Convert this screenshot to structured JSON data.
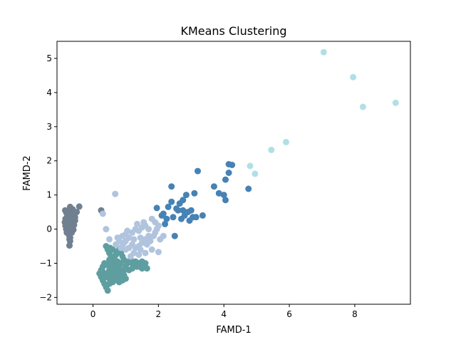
{
  "chart_data": {
    "type": "scatter",
    "title": "KMeans Clustering",
    "xlabel": "FAMD-1",
    "ylabel": "FAMD-2",
    "xlim": [
      -1.1,
      9.7
    ],
    "ylim": [
      -2.2,
      5.5
    ],
    "xticks": [
      0,
      2,
      4,
      6,
      8
    ],
    "yticks": [
      -2,
      -1,
      0,
      1,
      2,
      3,
      4,
      5
    ],
    "grid": false,
    "legend": "none",
    "series": [
      {
        "color": "#708090",
        "points": [
          [
            -0.85,
            0.55
          ],
          [
            -0.82,
            0.5
          ],
          [
            -0.8,
            0.45
          ],
          [
            -0.78,
            0.38
          ],
          [
            -0.84,
            0.3
          ],
          [
            -0.8,
            0.25
          ],
          [
            -0.86,
            0.2
          ],
          [
            -0.8,
            0.15
          ],
          [
            -0.84,
            0.1
          ],
          [
            -0.78,
            0.05
          ],
          [
            -0.82,
            0.0
          ],
          [
            -0.76,
            -0.05
          ],
          [
            -0.8,
            -0.1
          ],
          [
            -0.74,
            -0.15
          ],
          [
            -0.72,
            -0.2
          ],
          [
            -0.7,
            -0.25
          ],
          [
            -0.72,
            -0.3
          ],
          [
            -0.7,
            -0.35
          ],
          [
            -0.68,
            0.6
          ],
          [
            -0.62,
            0.58
          ],
          [
            -0.6,
            0.52
          ],
          [
            -0.55,
            0.48
          ],
          [
            -0.5,
            0.5
          ],
          [
            -0.6,
            0.4
          ],
          [
            -0.55,
            0.35
          ],
          [
            -0.6,
            0.3
          ],
          [
            -0.55,
            0.25
          ],
          [
            -0.6,
            0.2
          ],
          [
            -0.58,
            0.12
          ],
          [
            -0.62,
            0.05
          ],
          [
            -0.6,
            -0.02
          ],
          [
            -0.65,
            -0.1
          ],
          [
            -0.62,
            0.45
          ],
          [
            -0.65,
            0.35
          ],
          [
            -0.68,
            0.25
          ],
          [
            -0.7,
            0.15
          ],
          [
            -0.72,
            0.05
          ],
          [
            -0.7,
            -0.05
          ],
          [
            -0.68,
            0.5
          ],
          [
            -0.7,
            0.42
          ],
          [
            -0.7,
            0.65
          ],
          [
            -0.42,
            0.66
          ],
          [
            -0.72,
            -0.48
          ],
          [
            0.25,
            0.55
          ]
        ]
      },
      {
        "color": "#5F9EA0",
        "points": [
          [
            0.4,
            -0.5
          ],
          [
            0.45,
            -0.6
          ],
          [
            0.5,
            -0.7
          ],
          [
            0.55,
            -0.8
          ],
          [
            0.6,
            -0.9
          ],
          [
            0.65,
            -1.0
          ],
          [
            0.7,
            -1.1
          ],
          [
            0.75,
            -1.2
          ],
          [
            0.8,
            -1.3
          ],
          [
            0.35,
            -1.0
          ],
          [
            0.3,
            -1.1
          ],
          [
            0.25,
            -1.2
          ],
          [
            0.2,
            -1.3
          ],
          [
            0.25,
            -1.4
          ],
          [
            0.3,
            -1.5
          ],
          [
            0.35,
            -1.6
          ],
          [
            0.4,
            -1.7
          ],
          [
            0.45,
            -1.8
          ],
          [
            0.5,
            -1.6
          ],
          [
            0.55,
            -1.5
          ],
          [
            0.6,
            -1.4
          ],
          [
            0.65,
            -1.35
          ],
          [
            0.7,
            -1.45
          ],
          [
            0.75,
            -1.5
          ],
          [
            0.85,
            -1.4
          ],
          [
            0.9,
            -1.3
          ],
          [
            0.95,
            -1.2
          ],
          [
            1.0,
            -1.1
          ],
          [
            1.05,
            -1.0
          ],
          [
            1.1,
            -0.95
          ],
          [
            1.15,
            -0.9
          ],
          [
            1.2,
            -1.0
          ],
          [
            1.25,
            -1.05
          ],
          [
            1.3,
            -0.95
          ],
          [
            1.4,
            -1.0
          ],
          [
            1.5,
            -0.95
          ],
          [
            1.55,
            -1.1
          ],
          [
            1.6,
            -1.0
          ],
          [
            1.65,
            -1.15
          ],
          [
            1.5,
            -1.15
          ],
          [
            1.35,
            -1.1
          ],
          [
            0.9,
            -1.5
          ],
          [
            1.0,
            -1.45
          ],
          [
            0.8,
            -1.55
          ],
          [
            0.45,
            -1.3
          ],
          [
            0.5,
            -1.2
          ],
          [
            0.55,
            -1.1
          ],
          [
            0.6,
            -1.0
          ],
          [
            0.65,
            -0.85
          ],
          [
            0.7,
            -0.75
          ],
          [
            0.75,
            -0.65
          ],
          [
            0.8,
            -0.6
          ],
          [
            0.85,
            -0.7
          ],
          [
            0.9,
            -0.8
          ],
          [
            0.95,
            -0.9
          ],
          [
            0.85,
            -1.0
          ],
          [
            0.75,
            -0.95
          ],
          [
            0.5,
            -0.9
          ],
          [
            0.4,
            -1.4
          ],
          [
            0.35,
            -1.3
          ],
          [
            0.3,
            -1.25
          ],
          [
            0.45,
            -1.05
          ],
          [
            0.55,
            -1.25
          ],
          [
            0.65,
            -1.2
          ],
          [
            0.7,
            -1.3
          ],
          [
            0.6,
            -1.55
          ],
          [
            0.5,
            -1.45
          ],
          [
            1.1,
            -1.2
          ],
          [
            1.2,
            -1.15
          ],
          [
            0.95,
            -1.35
          ],
          [
            0.85,
            -1.2
          ],
          [
            0.8,
            -1.1
          ],
          [
            0.6,
            -0.6
          ],
          [
            0.52,
            -0.55
          ]
        ]
      },
      {
        "color": "#B0C4DE",
        "points": [
          [
            0.3,
            0.45
          ],
          [
            0.4,
            0.0
          ],
          [
            0.68,
            1.03
          ],
          [
            0.5,
            -0.3
          ],
          [
            0.7,
            -0.45
          ],
          [
            0.8,
            -0.35
          ],
          [
            0.9,
            -0.2
          ],
          [
            1.0,
            -0.15
          ],
          [
            1.1,
            -0.25
          ],
          [
            1.2,
            -0.1
          ],
          [
            1.3,
            0.0
          ],
          [
            1.4,
            -0.05
          ],
          [
            1.5,
            0.05
          ],
          [
            1.6,
            0.1
          ],
          [
            1.7,
            0.0
          ],
          [
            1.8,
            0.3
          ],
          [
            1.9,
            0.2
          ],
          [
            2.0,
            0.1
          ],
          [
            1.9,
            -0.1
          ],
          [
            1.7,
            -0.2
          ],
          [
            1.6,
            -0.3
          ],
          [
            1.5,
            -0.4
          ],
          [
            1.4,
            -0.5
          ],
          [
            1.3,
            -0.55
          ],
          [
            1.2,
            -0.45
          ],
          [
            1.1,
            -0.55
          ],
          [
            1.0,
            -0.6
          ],
          [
            0.9,
            -0.5
          ],
          [
            1.35,
            0.15
          ],
          [
            1.55,
            0.2
          ],
          [
            2.0,
            -0.67
          ],
          [
            1.8,
            -0.6
          ],
          [
            1.6,
            -0.7
          ],
          [
            1.4,
            -0.75
          ],
          [
            1.25,
            -0.7
          ],
          [
            1.15,
            -0.8
          ],
          [
            1.0,
            -0.35
          ],
          [
            0.85,
            -0.55
          ],
          [
            1.45,
            -0.25
          ],
          [
            1.65,
            -0.45
          ],
          [
            1.75,
            -0.35
          ],
          [
            1.85,
            -0.2
          ],
          [
            2.05,
            -0.3
          ],
          [
            2.15,
            -0.2
          ],
          [
            1.95,
            0.0
          ],
          [
            0.75,
            -0.25
          ],
          [
            0.95,
            -0.4
          ],
          [
            1.05,
            -0.05
          ],
          [
            1.25,
            -0.3
          ],
          [
            1.45,
            -0.6
          ]
        ]
      },
      {
        "color": "#4682B4",
        "points": [
          [
            1.95,
            0.62
          ],
          [
            2.1,
            0.4
          ],
          [
            2.15,
            0.45
          ],
          [
            2.25,
            0.3
          ],
          [
            2.3,
            0.65
          ],
          [
            2.4,
            0.8
          ],
          [
            2.4,
            1.25
          ],
          [
            2.45,
            0.35
          ],
          [
            2.5,
            -0.2
          ],
          [
            2.6,
            0.55
          ],
          [
            2.65,
            0.75
          ],
          [
            2.7,
            0.3
          ],
          [
            2.75,
            0.85
          ],
          [
            2.8,
            0.4
          ],
          [
            2.85,
            1.0
          ],
          [
            2.9,
            0.5
          ],
          [
            2.95,
            0.25
          ],
          [
            3.0,
            0.55
          ],
          [
            3.05,
            0.35
          ],
          [
            3.1,
            1.05
          ],
          [
            3.15,
            0.35
          ],
          [
            3.2,
            1.7
          ],
          [
            3.35,
            0.4
          ],
          [
            3.7,
            1.25
          ],
          [
            3.85,
            1.05
          ],
          [
            4.0,
            1.0
          ],
          [
            4.05,
            0.85
          ],
          [
            4.05,
            1.45
          ],
          [
            4.15,
            1.9
          ],
          [
            4.15,
            1.65
          ],
          [
            4.25,
            1.88
          ],
          [
            4.75,
            1.18
          ],
          [
            2.2,
            0.15
          ],
          [
            2.55,
            0.6
          ],
          [
            2.75,
            0.55
          ]
        ]
      },
      {
        "color": "#B0E0E6",
        "points": [
          [
            4.8,
            1.85
          ],
          [
            4.95,
            1.62
          ],
          [
            5.45,
            2.32
          ],
          [
            5.9,
            2.55
          ],
          [
            7.05,
            5.18
          ],
          [
            7.95,
            4.45
          ],
          [
            8.25,
            3.58
          ],
          [
            9.25,
            3.7
          ]
        ]
      }
    ]
  }
}
